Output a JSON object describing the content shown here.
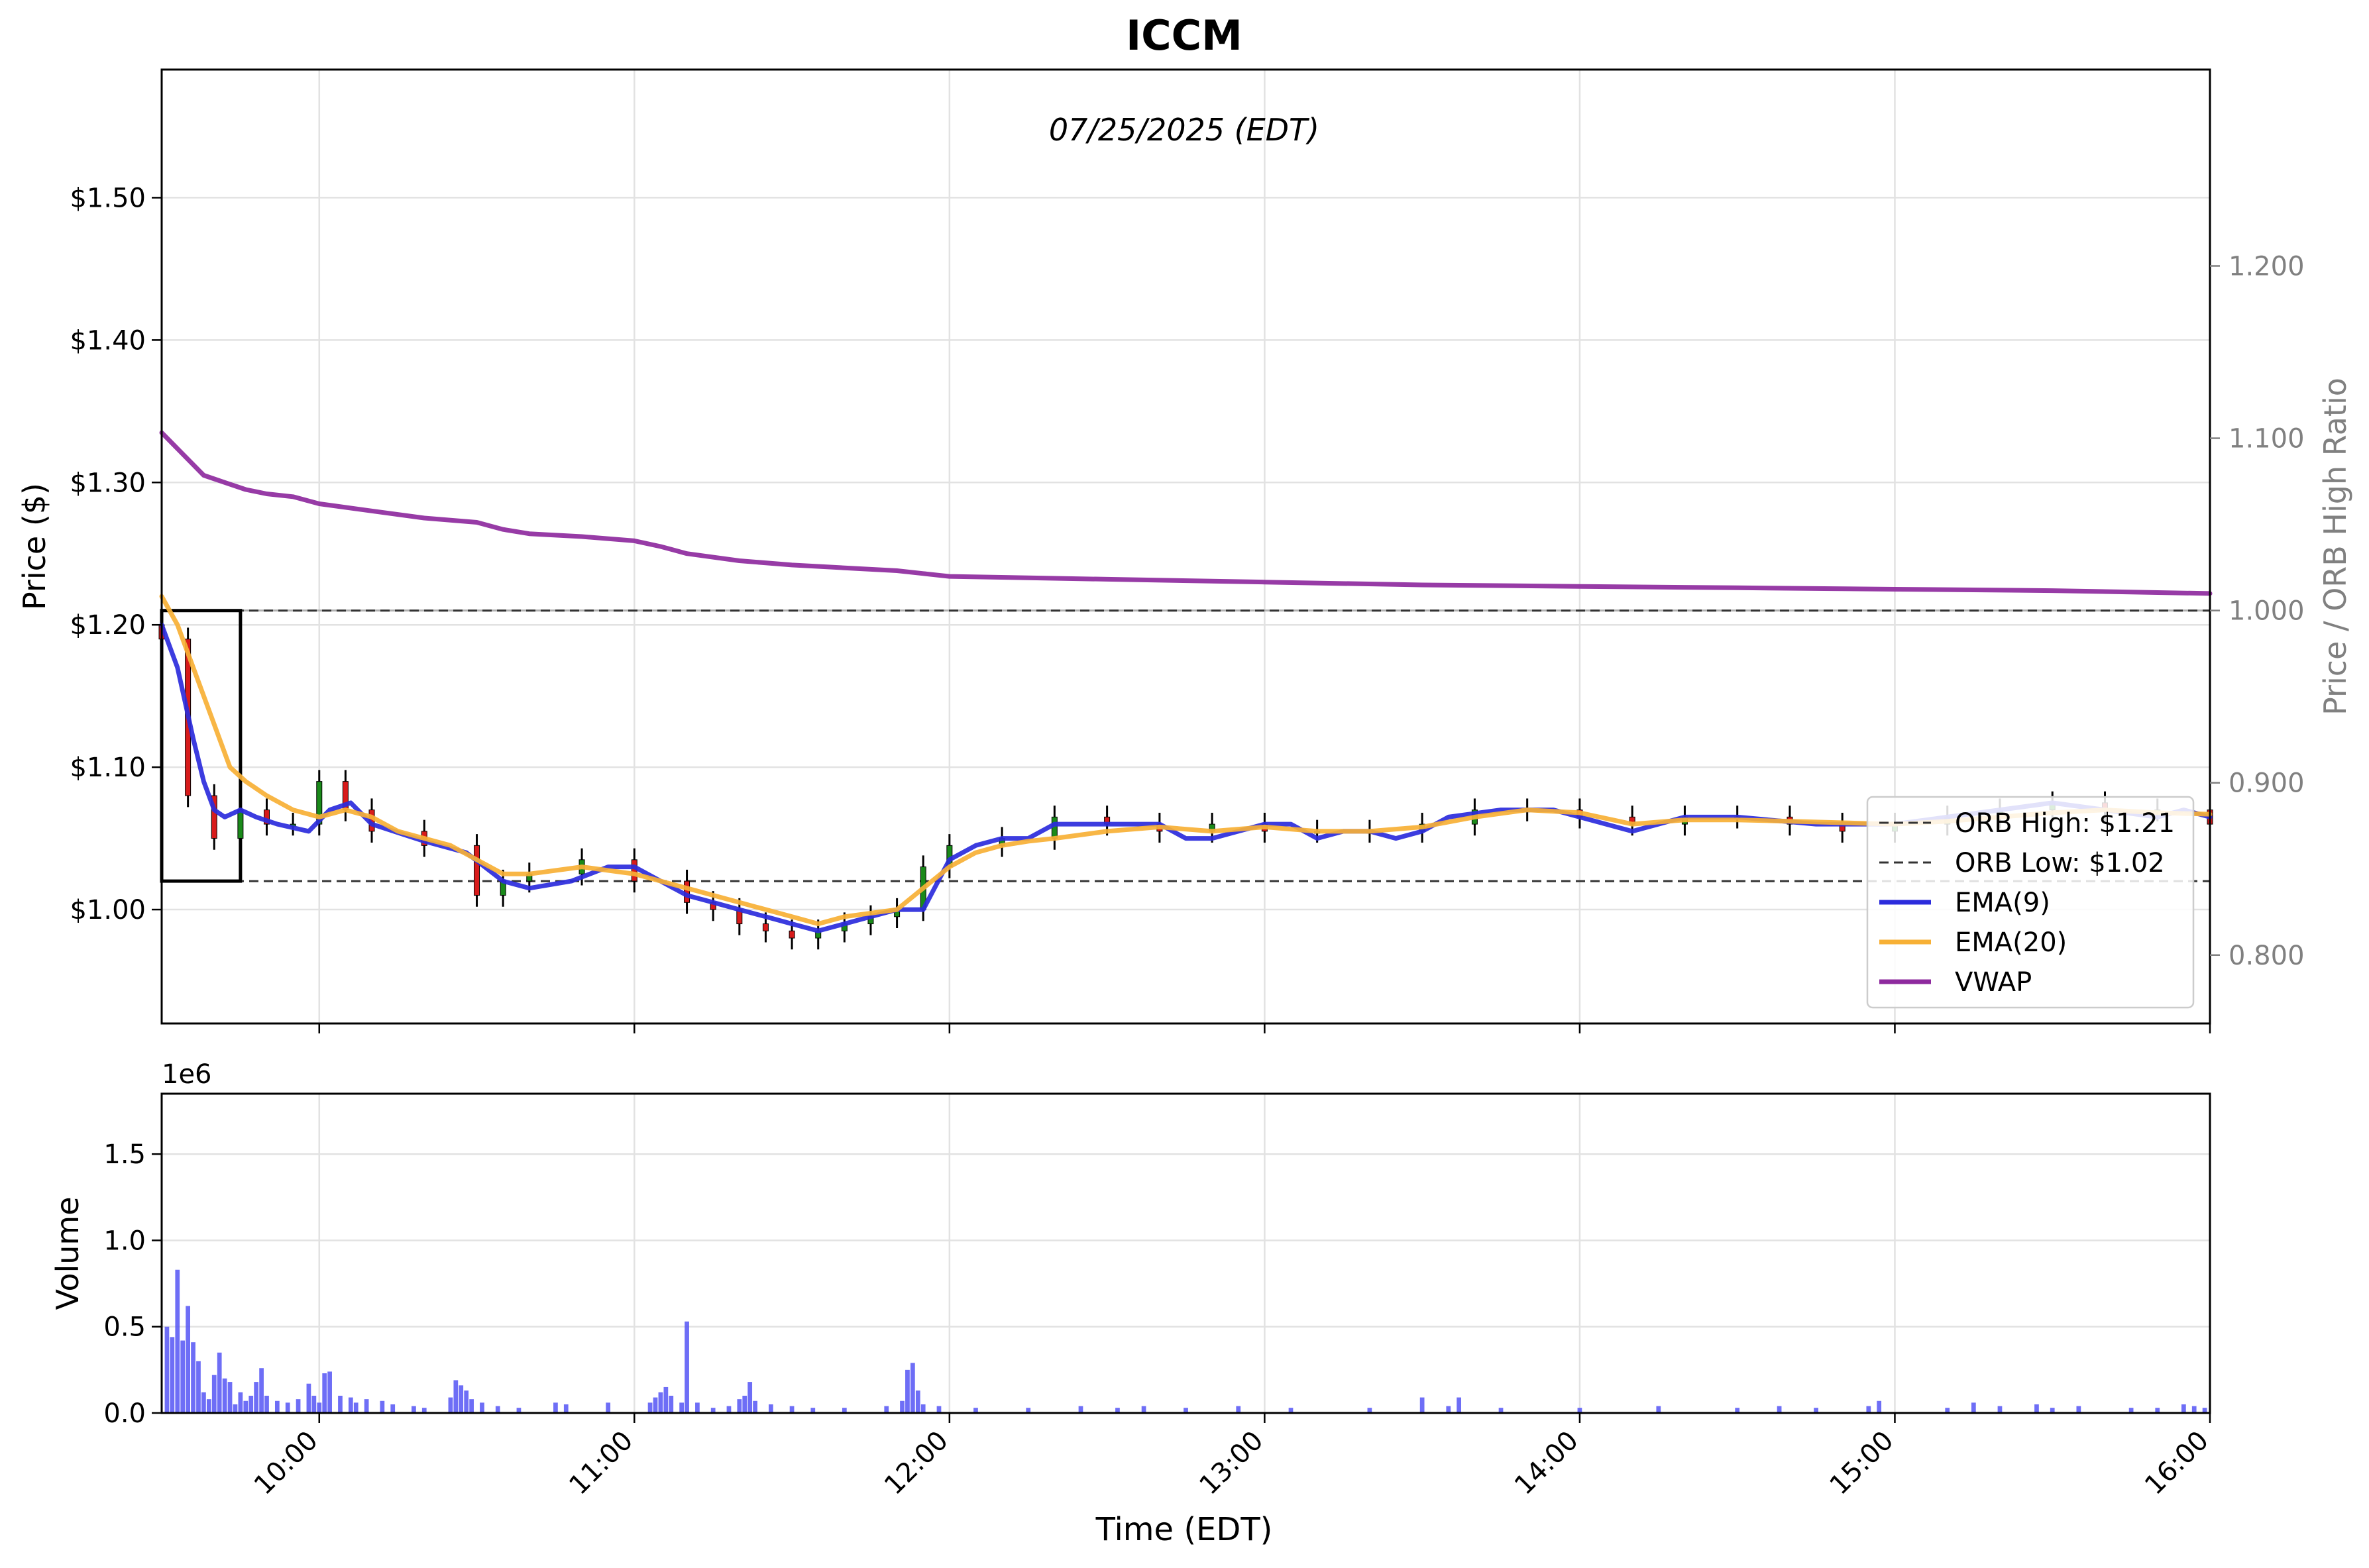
{
  "chart_data": {
    "type": "candlestick",
    "title": "ICCM",
    "subtitle": "07/25/2025 (EDT)",
    "xlabel": "Time (EDT)",
    "x_ticks": [
      "10:00",
      "11:00",
      "12:00",
      "13:00",
      "14:00",
      "15:00",
      "16:00"
    ],
    "x_range": [
      "09:30",
      "16:00"
    ],
    "price_panel": {
      "ylabel": "Price ($)",
      "ylim": [
        0.92,
        1.59
      ],
      "y_ticks": [
        1.0,
        1.1,
        1.2,
        1.3,
        1.4,
        1.5
      ],
      "y_tick_labels": [
        "$1.00",
        "$1.10",
        "$1.20",
        "$1.30",
        "$1.40",
        "$1.50"
      ],
      "right_axis": {
        "label": "Price / ORB High Ratio",
        "ylim": [
          0.7603,
          1.314
        ],
        "ticks": [
          0.8,
          0.9,
          1.0,
          1.1,
          1.2
        ],
        "tick_labels": [
          "0.800",
          "0.900",
          "1.000",
          "1.100",
          "1.200"
        ]
      },
      "ratio_reference_line": 1.0,
      "orb_box": {
        "start": "09:30",
        "end": "09:45",
        "high": 1.21,
        "low": 1.02
      },
      "grid": true,
      "legend_position": "lower-right",
      "legend": [
        {
          "label": "ORB High: $1.21",
          "style": "dashed",
          "color": "#333333"
        },
        {
          "label": "ORB Low: $1.02",
          "style": "dashed",
          "color": "#333333"
        },
        {
          "label": "EMA(9)",
          "style": "solid",
          "color": "#2b2bdc"
        },
        {
          "label": "EMA(20)",
          "style": "solid",
          "color": "#f7b035"
        },
        {
          "label": "VWAP",
          "style": "solid",
          "color": "#8e2a9e"
        }
      ],
      "series": [
        {
          "name": "EMA(9)",
          "color": "#2b2bdc",
          "x": [
            "09:30",
            "09:33",
            "09:36",
            "09:38",
            "09:40",
            "09:42",
            "09:45",
            "09:48",
            "09:52",
            "09:58",
            "10:02",
            "10:06",
            "10:10",
            "10:20",
            "10:28",
            "10:35",
            "10:40",
            "10:48",
            "10:55",
            "11:00",
            "11:05",
            "11:10",
            "11:15",
            "11:20",
            "11:25",
            "11:30",
            "11:35",
            "11:40",
            "11:45",
            "11:50",
            "11:55",
            "12:00",
            "12:05",
            "12:10",
            "12:15",
            "12:20",
            "12:30",
            "12:40",
            "12:45",
            "12:50",
            "13:00",
            "13:05",
            "13:10",
            "13:15",
            "13:20",
            "13:25",
            "13:30",
            "13:35",
            "13:45",
            "13:55",
            "14:00",
            "14:05",
            "14:10",
            "14:20",
            "14:30",
            "14:45",
            "15:00",
            "15:10",
            "15:20",
            "15:30",
            "15:40",
            "15:50",
            "15:55",
            "16:00"
          ],
          "values": [
            1.2,
            1.17,
            1.12,
            1.09,
            1.07,
            1.065,
            1.07,
            1.065,
            1.06,
            1.055,
            1.07,
            1.075,
            1.06,
            1.048,
            1.04,
            1.02,
            1.015,
            1.02,
            1.03,
            1.03,
            1.02,
            1.01,
            1.005,
            1.0,
            0.995,
            0.99,
            0.985,
            0.99,
            0.995,
            1.0,
            1.0,
            1.035,
            1.045,
            1.05,
            1.05,
            1.06,
            1.06,
            1.06,
            1.05,
            1.05,
            1.06,
            1.06,
            1.05,
            1.055,
            1.055,
            1.05,
            1.055,
            1.065,
            1.07,
            1.07,
            1.065,
            1.06,
            1.055,
            1.065,
            1.065,
            1.06,
            1.06,
            1.065,
            1.07,
            1.075,
            1.07,
            1.065,
            1.07,
            1.065
          ]
        },
        {
          "name": "EMA(20)",
          "color": "#f7b035",
          "x": [
            "09:30",
            "09:33",
            "09:36",
            "09:40",
            "09:43",
            "09:46",
            "09:50",
            "09:55",
            "10:00",
            "10:05",
            "10:10",
            "10:15",
            "10:25",
            "10:30",
            "10:35",
            "10:40",
            "10:50",
            "11:00",
            "11:10",
            "11:20",
            "11:30",
            "11:35",
            "11:40",
            "11:50",
            "11:55",
            "12:00",
            "12:05",
            "12:10",
            "12:15",
            "12:20",
            "12:30",
            "12:40",
            "12:50",
            "13:00",
            "13:10",
            "13:20",
            "13:30",
            "13:40",
            "13:50",
            "14:00",
            "14:10",
            "14:20",
            "14:30",
            "14:40",
            "15:00",
            "15:10",
            "15:20",
            "15:30",
            "15:40",
            "15:50",
            "16:00"
          ],
          "values": [
            1.22,
            1.2,
            1.17,
            1.13,
            1.1,
            1.09,
            1.08,
            1.07,
            1.065,
            1.07,
            1.065,
            1.055,
            1.045,
            1.035,
            1.025,
            1.025,
            1.03,
            1.025,
            1.015,
            1.005,
            0.995,
            0.99,
            0.995,
            1.0,
            1.015,
            1.03,
            1.04,
            1.045,
            1.048,
            1.05,
            1.055,
            1.058,
            1.055,
            1.058,
            1.055,
            1.055,
            1.058,
            1.065,
            1.07,
            1.068,
            1.06,
            1.063,
            1.063,
            1.062,
            1.06,
            1.062,
            1.065,
            1.068,
            1.07,
            1.068,
            1.067
          ]
        },
        {
          "name": "VWAP",
          "color": "#8e2a9e",
          "x": [
            "09:30",
            "09:34",
            "09:38",
            "09:42",
            "09:46",
            "09:50",
            "09:55",
            "10:00",
            "10:10",
            "10:20",
            "10:30",
            "10:35",
            "10:40",
            "10:50",
            "11:00",
            "11:05",
            "11:10",
            "11:20",
            "11:30",
            "11:40",
            "11:50",
            "11:55",
            "12:00",
            "12:30",
            "13:00",
            "13:30",
            "14:00",
            "14:30",
            "15:00",
            "15:30",
            "16:00"
          ],
          "values": [
            1.335,
            1.32,
            1.305,
            1.3,
            1.295,
            1.292,
            1.29,
            1.285,
            1.28,
            1.275,
            1.272,
            1.267,
            1.264,
            1.262,
            1.259,
            1.255,
            1.25,
            1.245,
            1.242,
            1.24,
            1.238,
            1.236,
            1.234,
            1.232,
            1.23,
            1.228,
            1.227,
            1.226,
            1.225,
            1.224,
            1.222
          ]
        }
      ],
      "candles_approx": {
        "x": [
          "09:30",
          "09:35",
          "09:40",
          "09:45",
          "09:50",
          "09:55",
          "10:00",
          "10:05",
          "10:10",
          "10:20",
          "10:30",
          "10:35",
          "10:40",
          "10:50",
          "11:00",
          "11:10",
          "11:15",
          "11:20",
          "11:25",
          "11:30",
          "11:35",
          "11:40",
          "11:45",
          "11:50",
          "11:55",
          "12:00",
          "12:10",
          "12:20",
          "12:30",
          "12:40",
          "12:50",
          "13:00",
          "13:10",
          "13:20",
          "13:30",
          "13:40",
          "13:50",
          "14:00",
          "14:10",
          "14:20",
          "14:30",
          "14:40",
          "14:50",
          "15:00",
          "15:10",
          "15:20",
          "15:30",
          "15:40",
          "15:50",
          "16:00"
        ],
        "close": [
          1.19,
          1.08,
          1.05,
          1.07,
          1.06,
          1.06,
          1.09,
          1.07,
          1.055,
          1.045,
          1.01,
          1.02,
          1.025,
          1.035,
          1.02,
          1.005,
          1.0,
          0.99,
          0.985,
          0.98,
          0.985,
          0.99,
          0.995,
          1.0,
          1.03,
          1.045,
          1.05,
          1.065,
          1.06,
          1.055,
          1.06,
          1.055,
          1.055,
          1.055,
          1.06,
          1.07,
          1.07,
          1.065,
          1.06,
          1.065,
          1.065,
          1.06,
          1.055,
          1.06,
          1.065,
          1.07,
          1.075,
          1.07,
          1.07,
          1.06
        ]
      }
    },
    "volume_panel": {
      "ylabel": "Volume",
      "scale_label": "1e6",
      "ylim": [
        0,
        1.85
      ],
      "y_ticks": [
        0.0,
        0.5,
        1.0,
        1.5
      ],
      "y_tick_labels": [
        "0.0",
        "0.5",
        "1.0",
        "1.5"
      ],
      "bar_color": "#5555f5",
      "bars": [
        {
          "x": "09:31",
          "v": 0.5
        },
        {
          "x": "09:32",
          "v": 0.44
        },
        {
          "x": "09:33",
          "v": 0.83
        },
        {
          "x": "09:34",
          "v": 0.42
        },
        {
          "x": "09:35",
          "v": 0.62
        },
        {
          "x": "09:36",
          "v": 0.41
        },
        {
          "x": "09:37",
          "v": 0.3
        },
        {
          "x": "09:38",
          "v": 0.12
        },
        {
          "x": "09:39",
          "v": 0.08
        },
        {
          "x": "09:40",
          "v": 0.22
        },
        {
          "x": "09:41",
          "v": 0.35
        },
        {
          "x": "09:42",
          "v": 0.2
        },
        {
          "x": "09:43",
          "v": 0.18
        },
        {
          "x": "09:44",
          "v": 0.05
        },
        {
          "x": "09:45",
          "v": 0.12
        },
        {
          "x": "09:46",
          "v": 0.07
        },
        {
          "x": "09:47",
          "v": 0.1
        },
        {
          "x": "09:48",
          "v": 0.18
        },
        {
          "x": "09:49",
          "v": 0.26
        },
        {
          "x": "09:50",
          "v": 0.1
        },
        {
          "x": "09:52",
          "v": 0.07
        },
        {
          "x": "09:54",
          "v": 0.06
        },
        {
          "x": "09:56",
          "v": 0.08
        },
        {
          "x": "09:58",
          "v": 0.17
        },
        {
          "x": "09:59",
          "v": 0.1
        },
        {
          "x": "10:00",
          "v": 0.06
        },
        {
          "x": "10:01",
          "v": 0.23
        },
        {
          "x": "10:02",
          "v": 0.24
        },
        {
          "x": "10:04",
          "v": 0.1
        },
        {
          "x": "10:06",
          "v": 0.09
        },
        {
          "x": "10:07",
          "v": 0.06
        },
        {
          "x": "10:09",
          "v": 0.08
        },
        {
          "x": "10:12",
          "v": 0.07
        },
        {
          "x": "10:14",
          "v": 0.05
        },
        {
          "x": "10:18",
          "v": 0.04
        },
        {
          "x": "10:20",
          "v": 0.03
        },
        {
          "x": "10:25",
          "v": 0.09
        },
        {
          "x": "10:26",
          "v": 0.19
        },
        {
          "x": "10:27",
          "v": 0.16
        },
        {
          "x": "10:28",
          "v": 0.13
        },
        {
          "x": "10:29",
          "v": 0.08
        },
        {
          "x": "10:31",
          "v": 0.06
        },
        {
          "x": "10:34",
          "v": 0.04
        },
        {
          "x": "10:38",
          "v": 0.03
        },
        {
          "x": "10:45",
          "v": 0.06
        },
        {
          "x": "10:47",
          "v": 0.05
        },
        {
          "x": "10:55",
          "v": 0.06
        },
        {
          "x": "11:03",
          "v": 0.06
        },
        {
          "x": "11:04",
          "v": 0.09
        },
        {
          "x": "11:05",
          "v": 0.12
        },
        {
          "x": "11:06",
          "v": 0.15
        },
        {
          "x": "11:07",
          "v": 0.1
        },
        {
          "x": "11:09",
          "v": 0.06
        },
        {
          "x": "11:10",
          "v": 0.53
        },
        {
          "x": "11:12",
          "v": 0.06
        },
        {
          "x": "11:15",
          "v": 0.03
        },
        {
          "x": "11:18",
          "v": 0.04
        },
        {
          "x": "11:20",
          "v": 0.08
        },
        {
          "x": "11:21",
          "v": 0.1
        },
        {
          "x": "11:22",
          "v": 0.18
        },
        {
          "x": "11:23",
          "v": 0.07
        },
        {
          "x": "11:26",
          "v": 0.05
        },
        {
          "x": "11:30",
          "v": 0.04
        },
        {
          "x": "11:34",
          "v": 0.03
        },
        {
          "x": "11:40",
          "v": 0.03
        },
        {
          "x": "11:48",
          "v": 0.04
        },
        {
          "x": "11:51",
          "v": 0.07
        },
        {
          "x": "11:52",
          "v": 0.25
        },
        {
          "x": "11:53",
          "v": 0.29
        },
        {
          "x": "11:54",
          "v": 0.13
        },
        {
          "x": "11:55",
          "v": 0.05
        },
        {
          "x": "11:58",
          "v": 0.04
        },
        {
          "x": "12:05",
          "v": 0.03
        },
        {
          "x": "12:15",
          "v": 0.03
        },
        {
          "x": "12:25",
          "v": 0.04
        },
        {
          "x": "12:32",
          "v": 0.03
        },
        {
          "x": "12:37",
          "v": 0.04
        },
        {
          "x": "12:45",
          "v": 0.03
        },
        {
          "x": "12:55",
          "v": 0.04
        },
        {
          "x": "13:05",
          "v": 0.03
        },
        {
          "x": "13:20",
          "v": 0.03
        },
        {
          "x": "13:30",
          "v": 0.09
        },
        {
          "x": "13:35",
          "v": 0.04
        },
        {
          "x": "13:37",
          "v": 0.09
        },
        {
          "x": "13:45",
          "v": 0.03
        },
        {
          "x": "14:00",
          "v": 0.03
        },
        {
          "x": "14:15",
          "v": 0.04
        },
        {
          "x": "14:30",
          "v": 0.03
        },
        {
          "x": "14:38",
          "v": 0.04
        },
        {
          "x": "14:45",
          "v": 0.03
        },
        {
          "x": "14:55",
          "v": 0.04
        },
        {
          "x": "14:57",
          "v": 0.07
        },
        {
          "x": "15:10",
          "v": 0.03
        },
        {
          "x": "15:15",
          "v": 0.06
        },
        {
          "x": "15:20",
          "v": 0.04
        },
        {
          "x": "15:27",
          "v": 0.05
        },
        {
          "x": "15:30",
          "v": 0.03
        },
        {
          "x": "15:35",
          "v": 0.04
        },
        {
          "x": "15:45",
          "v": 0.03
        },
        {
          "x": "15:50",
          "v": 0.03
        },
        {
          "x": "15:55",
          "v": 0.05
        },
        {
          "x": "15:57",
          "v": 0.04
        },
        {
          "x": "15:59",
          "v": 0.03
        }
      ]
    }
  }
}
